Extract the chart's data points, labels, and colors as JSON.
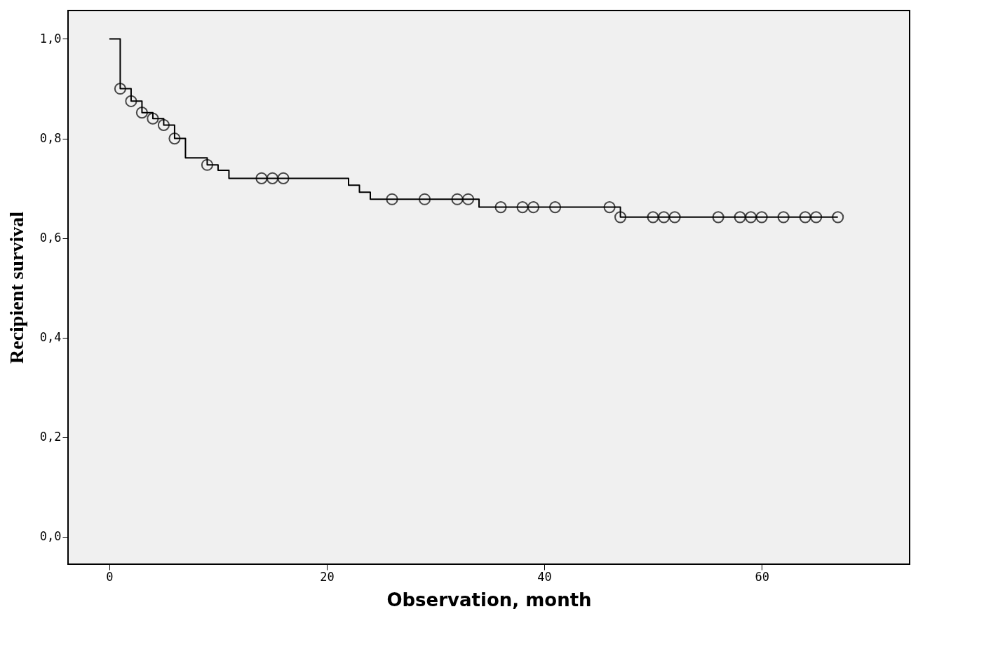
{
  "chart_data": {
    "type": "step",
    "xlabel": "Observation, month",
    "ylabel": "Recipient survival",
    "xlim": [
      -3.8,
      73.6
    ],
    "ylim": [
      -0.055,
      1.057
    ],
    "xticks": [
      0,
      20,
      40,
      60
    ],
    "yticks": [
      {
        "value": 0,
        "label": "0,0"
      },
      {
        "value": 0.2,
        "label": "0,2"
      },
      {
        "value": 0.4,
        "label": "0,4"
      },
      {
        "value": 0.6,
        "label": "0,6"
      },
      {
        "value": 0.8,
        "label": "0,8"
      },
      {
        "value": 1.0,
        "label": "1,0"
      }
    ],
    "grid": false,
    "line_style": "solid",
    "series": [
      {
        "color": "#000000",
        "marker": "none",
        "x": [
          0,
          1,
          2,
          3,
          4,
          5,
          6,
          7,
          9,
          10,
          11,
          22,
          23,
          24,
          34,
          47,
          67
        ],
        "values": [
          1.0,
          0.9,
          0.875,
          0.852,
          0.84,
          0.827,
          0.8,
          0.761,
          0.747,
          0.736,
          0.72,
          0.706,
          0.692,
          0.678,
          0.662,
          0.642,
          0.642
        ]
      },
      {
        "type": "scatter",
        "color": "#000000",
        "marker": "circle",
        "x": [
          1,
          2,
          3,
          4,
          5,
          6,
          9,
          14,
          15,
          16,
          26,
          29,
          32,
          33,
          36,
          38,
          39,
          41,
          46,
          47,
          50,
          51,
          52,
          56,
          58,
          59,
          60,
          62,
          64,
          65,
          67
        ],
        "values": [
          0.9,
          0.875,
          0.852,
          0.84,
          0.827,
          0.8,
          0.747,
          0.72,
          0.72,
          0.72,
          0.678,
          0.678,
          0.678,
          0.678,
          0.662,
          0.662,
          0.662,
          0.662,
          0.662,
          0.642,
          0.642,
          0.642,
          0.642,
          0.642,
          0.642,
          0.642,
          0.642,
          0.642,
          0.642,
          0.642,
          0.642
        ]
      }
    ]
  }
}
